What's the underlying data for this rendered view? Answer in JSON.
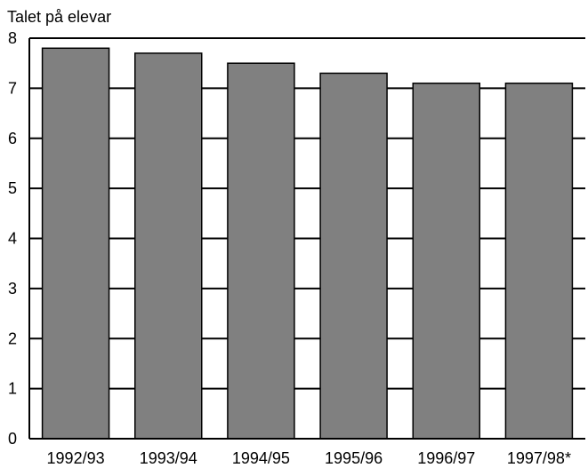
{
  "chart_data": {
    "type": "bar",
    "ylabel": "Talet på elevar",
    "categories": [
      "1992/93",
      "1993/94",
      "1994/95",
      "1995/96",
      "1996/97",
      "1997/98*"
    ],
    "values": [
      7.8,
      7.7,
      7.5,
      7.3,
      7.1,
      7.1
    ],
    "ylim": [
      0,
      8
    ],
    "yticks": [
      0,
      1,
      2,
      3,
      4,
      5,
      6,
      7,
      8
    ],
    "grid": true,
    "legend": "none",
    "bar_color": "#808080",
    "bar_edge_color": "#000000"
  }
}
